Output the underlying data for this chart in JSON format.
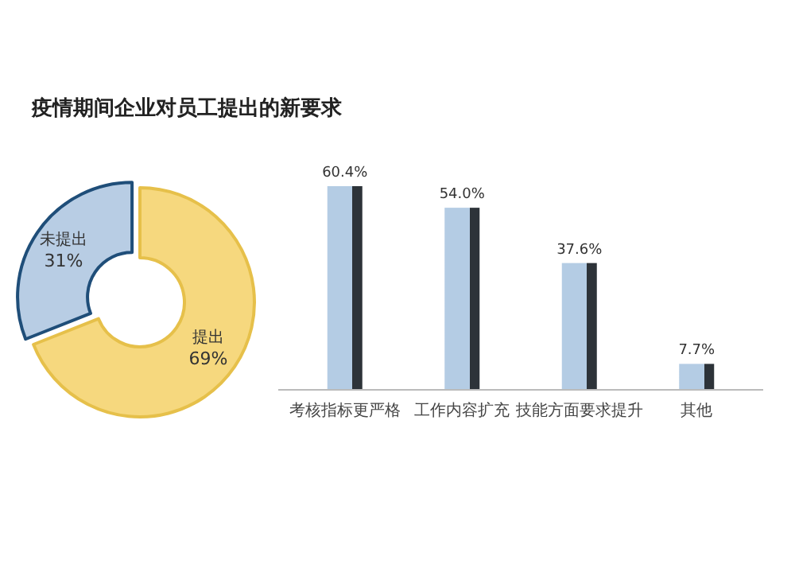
{
  "chart_data": [
    {
      "type": "donut",
      "title": "疫情期间企业对员工提出的新要求",
      "categories": [
        "未提出",
        "提出"
      ],
      "values": [
        31,
        69
      ],
      "colors": [
        "#b8cde4",
        "#f6d87e"
      ],
      "value_labels": [
        "31%",
        "69%"
      ]
    },
    {
      "type": "bar",
      "categories": [
        "考核指标更严格",
        "工作内容扩充",
        "技能方面要求提升",
        "其他"
      ],
      "values": [
        60.4,
        54.0,
        37.6,
        7.7
      ],
      "color": "#b4cce4",
      "value_labels": [
        "60.4%",
        "54.0%",
        "37.6%",
        "7.7%"
      ]
    }
  ]
}
